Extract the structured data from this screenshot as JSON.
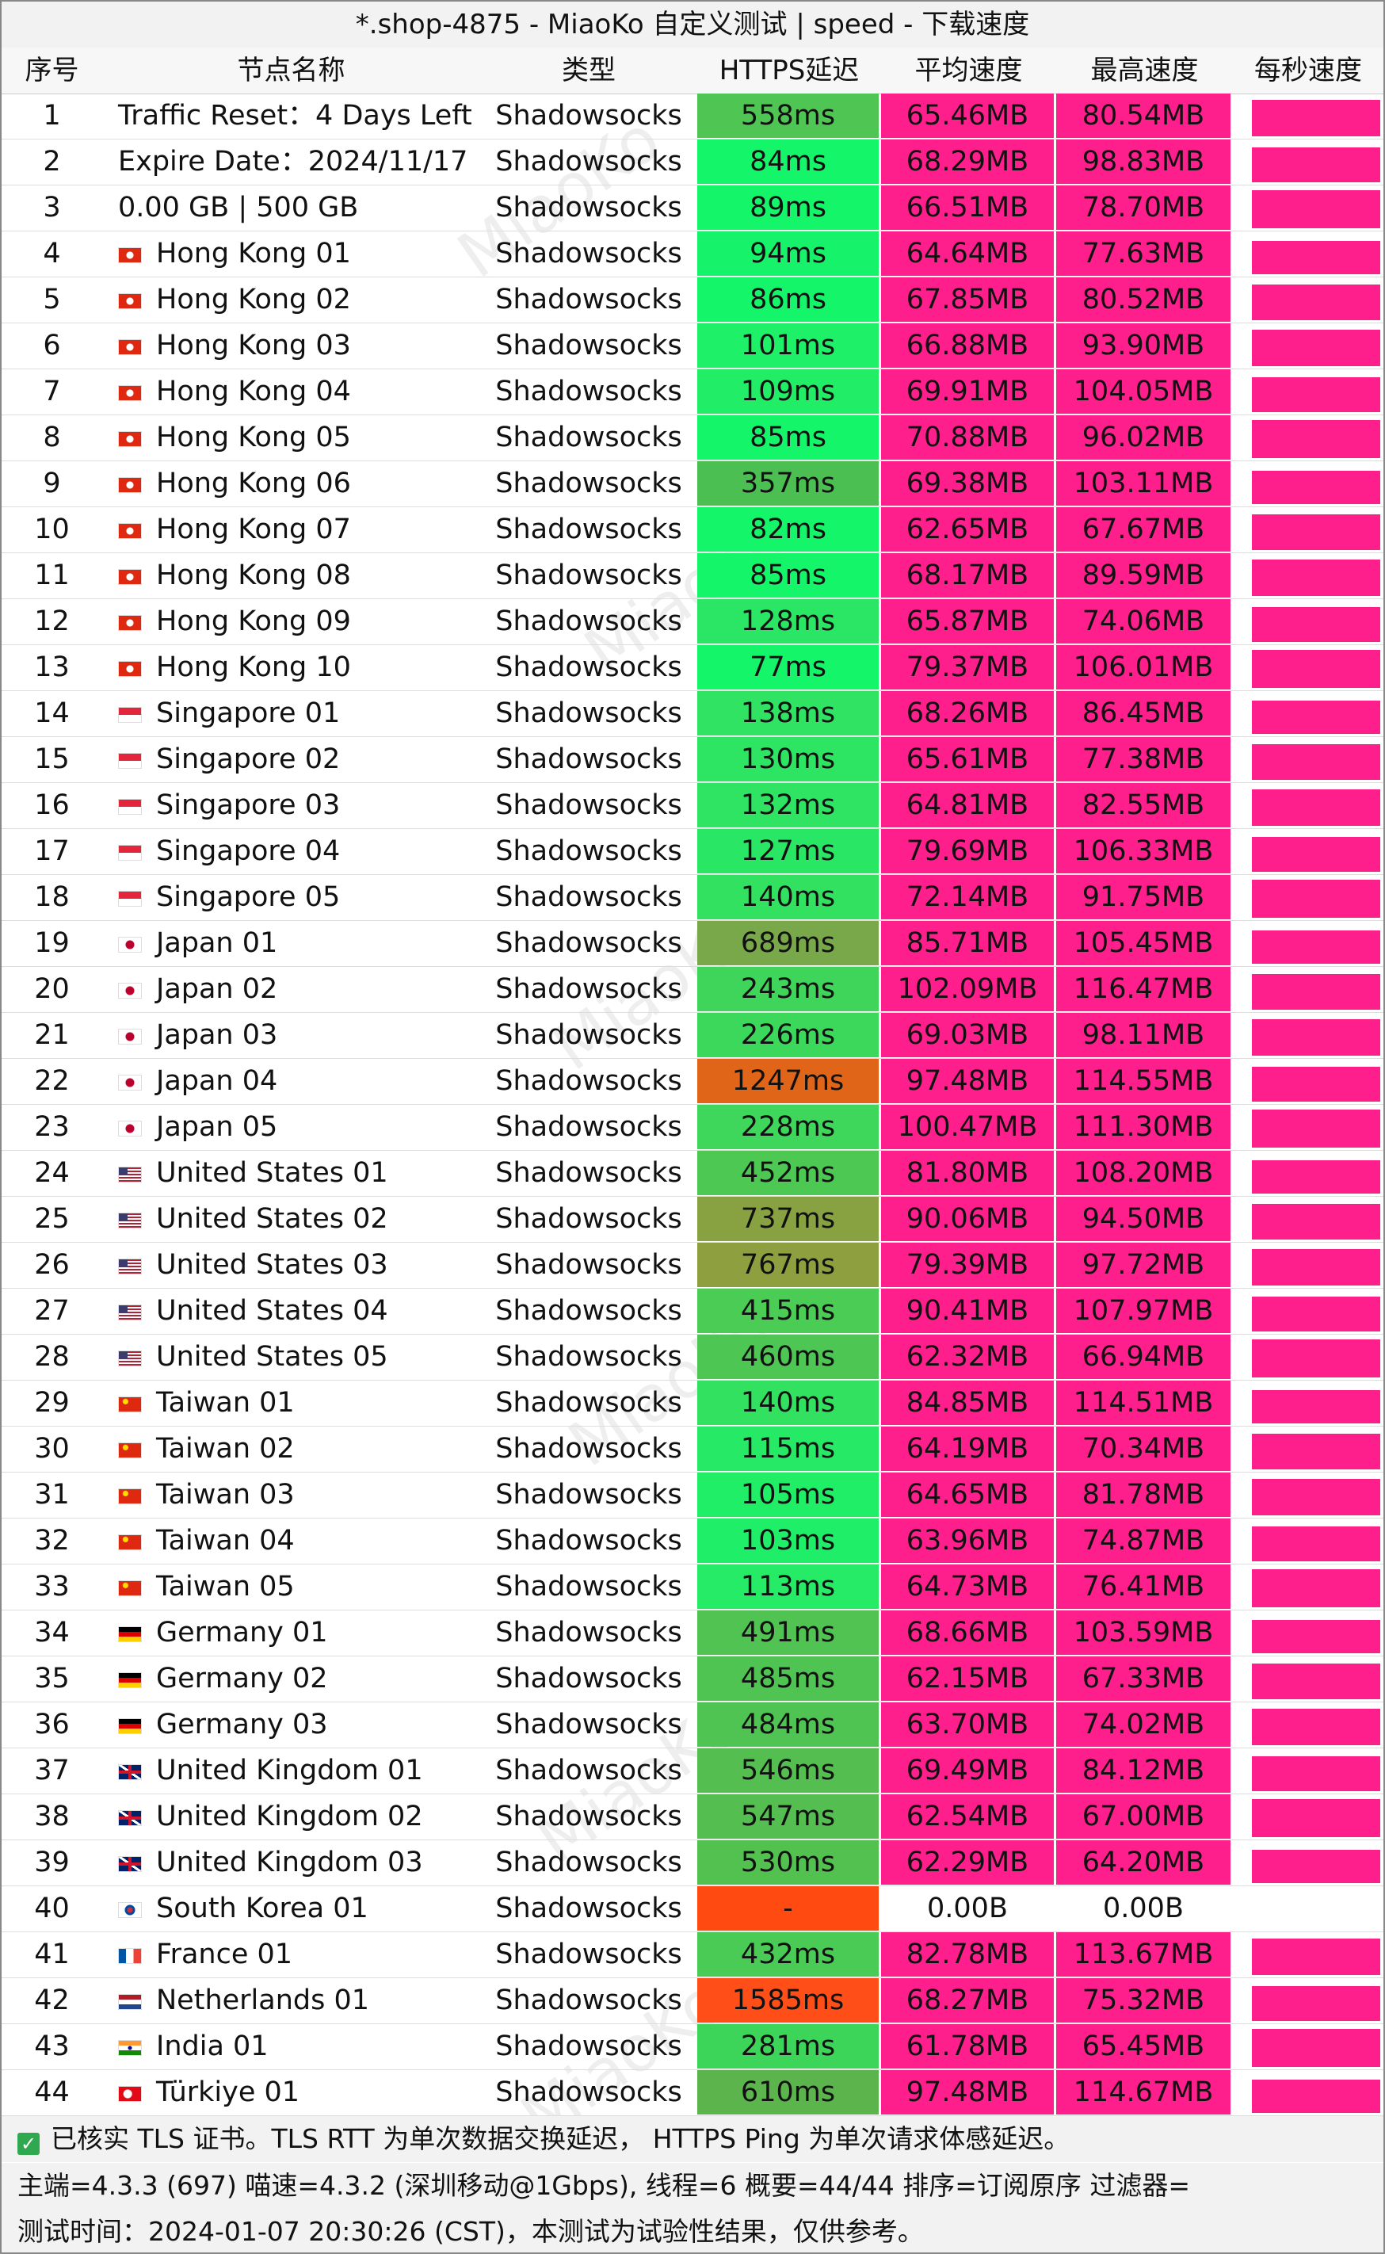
{
  "header": {
    "title": "*.shop-4875 - MiaoKo 自定义测试 | speed - 下载速度"
  },
  "watermark": "MiaoKo",
  "table": {
    "columns": [
      "序号",
      "节点名称",
      "类型",
      "HTTPS延迟",
      "平均速度",
      "最高速度",
      "每秒速度"
    ],
    "rows": [
      [
        "1",
        "Traffic Reset：4 Days Left",
        "Shadowsocks",
        "558ms",
        "65.46MB",
        "80.54MB"
      ],
      [
        "2",
        "Expire Date：2024/11/17",
        "Shadowsocks",
        "84ms",
        "68.29MB",
        "98.83MB"
      ],
      [
        "3",
        "0.00 GB | 500 GB",
        "Shadowsocks",
        "89ms",
        "66.51MB",
        "78.70MB"
      ],
      [
        "4",
        "Hong Kong 01",
        "Shadowsocks",
        "94ms",
        "64.64MB",
        "77.63MB"
      ],
      [
        "5",
        "Hong Kong 02",
        "Shadowsocks",
        "86ms",
        "67.85MB",
        "80.52MB"
      ],
      [
        "6",
        "Hong Kong 03",
        "Shadowsocks",
        "101ms",
        "66.88MB",
        "93.90MB"
      ],
      [
        "7",
        "Hong Kong 04",
        "Shadowsocks",
        "109ms",
        "69.91MB",
        "104.05MB"
      ],
      [
        "8",
        "Hong Kong 05",
        "Shadowsocks",
        "85ms",
        "70.88MB",
        "96.02MB"
      ],
      [
        "9",
        "Hong Kong 06",
        "Shadowsocks",
        "357ms",
        "69.38MB",
        "103.11MB"
      ],
      [
        "10",
        "Hong Kong 07",
        "Shadowsocks",
        "82ms",
        "62.65MB",
        "67.67MB"
      ],
      [
        "11",
        "Hong Kong 08",
        "Shadowsocks",
        "85ms",
        "68.17MB",
        "89.59MB"
      ],
      [
        "12",
        "Hong Kong 09",
        "Shadowsocks",
        "128ms",
        "65.87MB",
        "74.06MB"
      ],
      [
        "13",
        "Hong Kong 10",
        "Shadowsocks",
        "77ms",
        "79.37MB",
        "106.01MB"
      ],
      [
        "14",
        "Singapore 01",
        "Shadowsocks",
        "138ms",
        "68.26MB",
        "86.45MB"
      ],
      [
        "15",
        "Singapore 02",
        "Shadowsocks",
        "130ms",
        "65.61MB",
        "77.38MB"
      ],
      [
        "16",
        "Singapore 03",
        "Shadowsocks",
        "132ms",
        "64.81MB",
        "82.55MB"
      ],
      [
        "17",
        "Singapore 04",
        "Shadowsocks",
        "127ms",
        "79.69MB",
        "106.33MB"
      ],
      [
        "18",
        "Singapore 05",
        "Shadowsocks",
        "140ms",
        "72.14MB",
        "91.75MB"
      ],
      [
        "19",
        "Japan 01",
        "Shadowsocks",
        "689ms",
        "85.71MB",
        "105.45MB"
      ],
      [
        "20",
        "Japan 02",
        "Shadowsocks",
        "243ms",
        "102.09MB",
        "116.47MB"
      ],
      [
        "21",
        "Japan 03",
        "Shadowsocks",
        "226ms",
        "69.03MB",
        "98.11MB"
      ],
      [
        "22",
        "Japan 04",
        "Shadowsocks",
        "1247ms",
        "97.48MB",
        "114.55MB"
      ],
      [
        "23",
        "Japan 05",
        "Shadowsocks",
        "228ms",
        "100.47MB",
        "111.30MB"
      ],
      [
        "24",
        "United States 01",
        "Shadowsocks",
        "452ms",
        "81.80MB",
        "108.20MB"
      ],
      [
        "25",
        "United States 02",
        "Shadowsocks",
        "737ms",
        "90.06MB",
        "94.50MB"
      ],
      [
        "26",
        "United States 03",
        "Shadowsocks",
        "767ms",
        "79.39MB",
        "97.72MB"
      ],
      [
        "27",
        "United States 04",
        "Shadowsocks",
        "415ms",
        "90.41MB",
        "107.97MB"
      ],
      [
        "28",
        "United States 05",
        "Shadowsocks",
        "460ms",
        "62.32MB",
        "66.94MB"
      ],
      [
        "29",
        "Taiwan 01",
        "Shadowsocks",
        "140ms",
        "84.85MB",
        "114.51MB"
      ],
      [
        "30",
        "Taiwan 02",
        "Shadowsocks",
        "115ms",
        "64.19MB",
        "70.34MB"
      ],
      [
        "31",
        "Taiwan 03",
        "Shadowsocks",
        "105ms",
        "64.65MB",
        "81.78MB"
      ],
      [
        "32",
        "Taiwan 04",
        "Shadowsocks",
        "103ms",
        "63.96MB",
        "74.87MB"
      ],
      [
        "33",
        "Taiwan 05",
        "Shadowsocks",
        "113ms",
        "64.73MB",
        "76.41MB"
      ],
      [
        "34",
        "Germany 01",
        "Shadowsocks",
        "491ms",
        "68.66MB",
        "103.59MB"
      ],
      [
        "35",
        "Germany 02",
        "Shadowsocks",
        "485ms",
        "62.15MB",
        "67.33MB"
      ],
      [
        "36",
        "Germany 03",
        "Shadowsocks",
        "484ms",
        "63.70MB",
        "74.02MB"
      ],
      [
        "37",
        "United Kingdom 01",
        "Shadowsocks",
        "546ms",
        "69.49MB",
        "84.12MB"
      ],
      [
        "38",
        "United Kingdom 02",
        "Shadowsocks",
        "547ms",
        "62.54MB",
        "67.00MB"
      ],
      [
        "39",
        "United Kingdom 03",
        "Shadowsocks",
        "530ms",
        "62.29MB",
        "64.20MB"
      ],
      [
        "40",
        "South Korea 01",
        "Shadowsocks",
        "-",
        "0.00B",
        "0.00B"
      ],
      [
        "41",
        "France 01",
        "Shadowsocks",
        "432ms",
        "82.78MB",
        "113.67MB"
      ],
      [
        "42",
        "Netherlands 01",
        "Shadowsocks",
        "1585ms",
        "68.27MB",
        "75.32MB"
      ],
      [
        "43",
        "India 01",
        "Shadowsocks",
        "281ms",
        "61.78MB",
        "65.45MB"
      ],
      [
        "44",
        "Türkiye 01",
        "Shadowsocks",
        "610ms",
        "97.48MB",
        "114.67MB"
      ]
    ],
    "latency_colors": [
      "#4fc653",
      "#14f56a",
      "#14f56a",
      "#16f36a",
      "#14f56a",
      "#1ef068",
      "#22ed67",
      "#14f56a",
      "#4bbf51",
      "#14f56a",
      "#14f56a",
      "#2be664",
      "#14f56a",
      "#30e362",
      "#2ee463",
      "#2fe463",
      "#2ae665",
      "#33e161",
      "#78a84a",
      "#3fd45a",
      "#3cd85b",
      "#e06518",
      "#3ed65b",
      "#4cc853",
      "#88a241",
      "#8d9f3e",
      "#4acc55",
      "#4dc653",
      "#33e161",
      "#26ea66",
      "#20ee67",
      "#1fef68",
      "#25eb66",
      "#50c352",
      "#50c452",
      "#50c452",
      "#54bf50",
      "#54bf50",
      "#53c150",
      "#ff4a12",
      "#4acb55",
      "#ff4e18",
      "#3dd45a",
      "#5cb54c"
    ],
    "speed_colors": [
      "#ff1f8c",
      "#ff1f8c",
      "#ff1f8c",
      "#ff1f8c",
      "#ff1f8c",
      "#ff1f8c",
      "#ff1f8c",
      "#ff1f8c",
      "#ff1f8c",
      "#ff1f8c",
      "#ff1f8c",
      "#ff1f8c",
      "#ff1f8c",
      "#ff1f8c",
      "#ff1f8c",
      "#ff1f8c",
      "#ff1f8c",
      "#ff1f8c",
      "#ff1f8c",
      "#ff1f8c",
      "#ff1f8c",
      "#ff1f8c",
      "#ff1f8c",
      "#ff1f8c",
      "#ff1f8c",
      "#ff1f8c",
      "#ff1f8c",
      "#ff1f8c",
      "#ff1f8c",
      "#ff1f8c",
      "#ff1f8c",
      "#ff1f8c",
      "#ff1f8c",
      "#ff1f8c",
      "#ff1f8c",
      "#ff1f8c",
      "#ff1f8c",
      "#ff1f8c",
      "#ff1f8c",
      "#ffffff",
      "#ff1f8c",
      "#ff1f8c",
      "#ff1f8c",
      "#ff1f8c"
    ]
  },
  "footer": [
    "已核实 TLS 证书。TLS RTT 为单次数据交换延迟， HTTPS Ping 为单次请求体感延迟。",
    "主端=4.3.3 (697) 喵速=4.3.2 (深圳移动@1Gbps), 线程=6 概要=44/44 排序=订阅原序 过滤器=",
    "测试时间：2024-01-07 20:30:26 (CST)，本测试为试验性结果，仅供参考。"
  ]
}
